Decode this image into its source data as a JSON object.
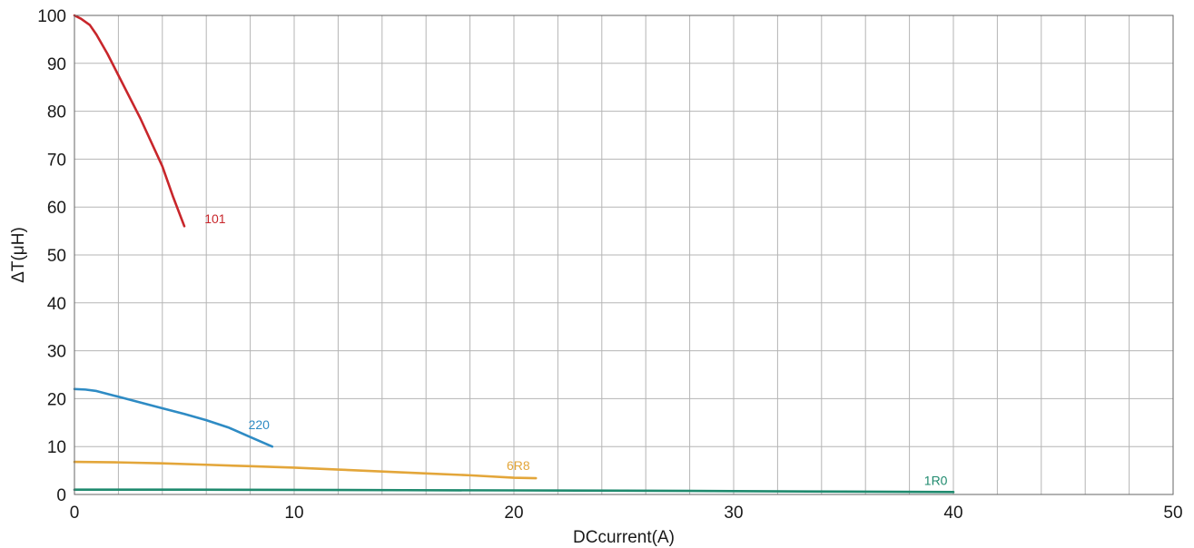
{
  "chart_data": {
    "type": "line",
    "title": "",
    "xlabel": "DCcurrent(A)",
    "ylabel": "ΔT(μH)",
    "xlim": [
      0,
      50
    ],
    "ylim": [
      0,
      100
    ],
    "x_ticks": [
      0,
      10,
      20,
      30,
      40,
      50
    ],
    "y_ticks": [
      0,
      10,
      20,
      30,
      40,
      50,
      60,
      70,
      80,
      90,
      100
    ],
    "x_minor_step": 2,
    "grid": true,
    "legend": "inline labels at line ends",
    "series": [
      {
        "name": "101",
        "color": "#c8262b",
        "x": [
          0,
          0.3,
          0.7,
          1,
          1.5,
          2,
          3,
          4,
          4.5,
          5
        ],
        "y": [
          100,
          99.3,
          98,
          96,
          92,
          87.5,
          78.5,
          68.5,
          62,
          56
        ]
      },
      {
        "name": "220",
        "color": "#2e8bc4",
        "x": [
          0,
          0.5,
          1,
          2,
          3,
          4,
          5,
          6,
          7,
          8,
          9
        ],
        "y": [
          22,
          21.9,
          21.6,
          20.4,
          19.2,
          18,
          16.8,
          15.5,
          14,
          12,
          10
        ]
      },
      {
        "name": "6R8",
        "color": "#e3a63a",
        "x": [
          0,
          2,
          4,
          6,
          8,
          10,
          12,
          14,
          16,
          18,
          20,
          21
        ],
        "y": [
          6.8,
          6.7,
          6.5,
          6.2,
          5.9,
          5.6,
          5.2,
          4.8,
          4.4,
          4.0,
          3.5,
          3.4
        ]
      },
      {
        "name": "1R0",
        "color": "#1f8a6e",
        "x": [
          0,
          5,
          10,
          15,
          20,
          25,
          30,
          35,
          40
        ],
        "y": [
          1.0,
          1.0,
          0.95,
          0.9,
          0.85,
          0.8,
          0.7,
          0.6,
          0.5
        ]
      }
    ],
    "annotations": [
      {
        "text": "101",
        "x": 6.4,
        "y": 57.6,
        "color": "#c8262b"
      },
      {
        "text": "220",
        "x": 8.4,
        "y": 14.6,
        "color": "#2e8bc4"
      },
      {
        "text": "6R8",
        "x": 20.2,
        "y": 6.1,
        "color": "#e3a63a"
      },
      {
        "text": "1R0",
        "x": 39.2,
        "y": 2.9,
        "color": "#1f8a6e"
      }
    ]
  }
}
